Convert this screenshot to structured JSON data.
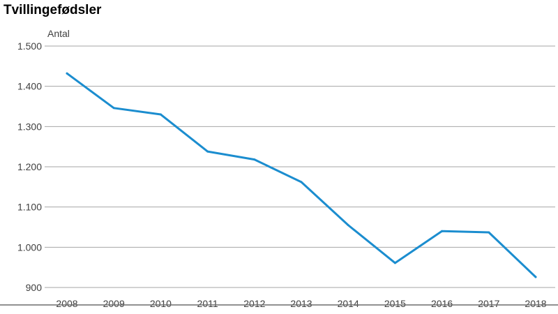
{
  "chart_data": {
    "type": "line",
    "title": "Tvillingefødsler",
    "ylabel": "Antal",
    "xlabel": "",
    "x": [
      "2008",
      "2009",
      "2010",
      "2011",
      "2012",
      "2013",
      "2014",
      "2015",
      "2016",
      "2017",
      "2018"
    ],
    "series": [
      {
        "values": [
          1432,
          1346,
          1330,
          1238,
          1218,
          1162,
          1055,
          961,
          1040,
          1037,
          926
        ]
      }
    ],
    "ylim": [
      900,
      1500
    ],
    "yticks": [
      900,
      1000,
      1100,
      1200,
      1300,
      1400,
      1500
    ],
    "ytick_labels": [
      "900",
      "1.000",
      "1.100",
      "1.200",
      "1.300",
      "1.400",
      "1.500"
    ],
    "grid": "horizontal",
    "legend": "none",
    "line_color": "#1B8DCF",
    "grid_color": "#A6A6A6",
    "axis_color": "#6D6D6D"
  }
}
